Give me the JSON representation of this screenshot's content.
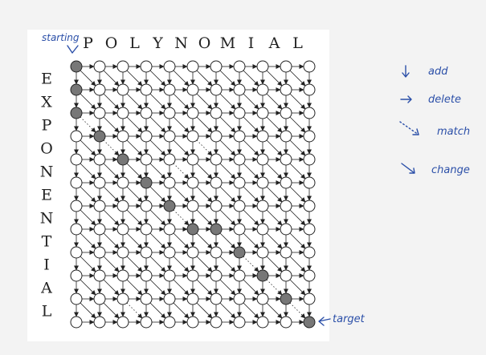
{
  "source_word": "POLYNOMIAL",
  "target_word": "EXPONENTIAL",
  "annotations": {
    "start": "starting",
    "target": "target"
  },
  "legend": [
    {
      "label": "add",
      "icon": "arrow-down-icon"
    },
    {
      "label": "delete",
      "icon": "arrow-right-icon"
    },
    {
      "label": "match",
      "icon": "dotted-diagonal-arrow-icon"
    },
    {
      "label": "change",
      "icon": "diagonal-arrow-icon"
    }
  ],
  "path": [
    [
      0,
      0
    ],
    [
      1,
      0
    ],
    [
      2,
      0
    ],
    [
      3,
      1
    ],
    [
      4,
      2
    ],
    [
      5,
      3
    ],
    [
      6,
      4
    ],
    [
      7,
      5
    ],
    [
      7,
      6
    ],
    [
      8,
      7
    ],
    [
      9,
      8
    ],
    [
      10,
      9
    ],
    [
      11,
      10
    ]
  ],
  "colors": {
    "ink": "#222222",
    "path_node": "#777777",
    "pen": "#2b4fa8",
    "panel": "#ffffff",
    "background": "#f3f3f3"
  }
}
